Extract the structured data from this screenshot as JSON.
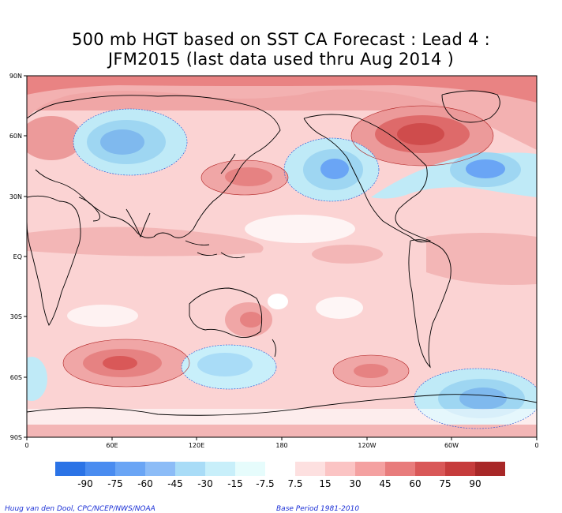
{
  "title_line1": "500 mb HGT based on SST CA Forecast : Lead 4 :",
  "title_line2": "JFM2015 (last data used thru Aug 2014 )",
  "lat_labels": [
    "90N",
    "60N",
    "30N",
    "EQ",
    "30S",
    "60S",
    "90S"
  ],
  "lon_labels": [
    "0",
    "60E",
    "120E",
    "180",
    "120W",
    "60W",
    "0"
  ],
  "colorbar": {
    "labels": [
      "-90",
      "-75",
      "-60",
      "-45",
      "-30",
      "-15",
      "-7.5",
      "7.5",
      "15",
      "30",
      "45",
      "60",
      "75",
      "90"
    ],
    "colors": [
      "#2b73e6",
      "#4a8cf0",
      "#6aa5f5",
      "#8cbcf7",
      "#a9dcf7",
      "#c8effa",
      "#e6fcfc",
      "#ffffff",
      "#fde0e0",
      "#fbc4c4",
      "#f4a1a1",
      "#e87c7c",
      "#d95858",
      "#c63c3c",
      "#a82828"
    ]
  },
  "credit_left": "Huug van den Dool, CPC/NCEP/NWS/NOAA",
  "credit_right": "Base Period 1981-2010",
  "colors": {
    "bg_pos": "#fbd0d0",
    "credit": "#1a2fd6"
  }
}
